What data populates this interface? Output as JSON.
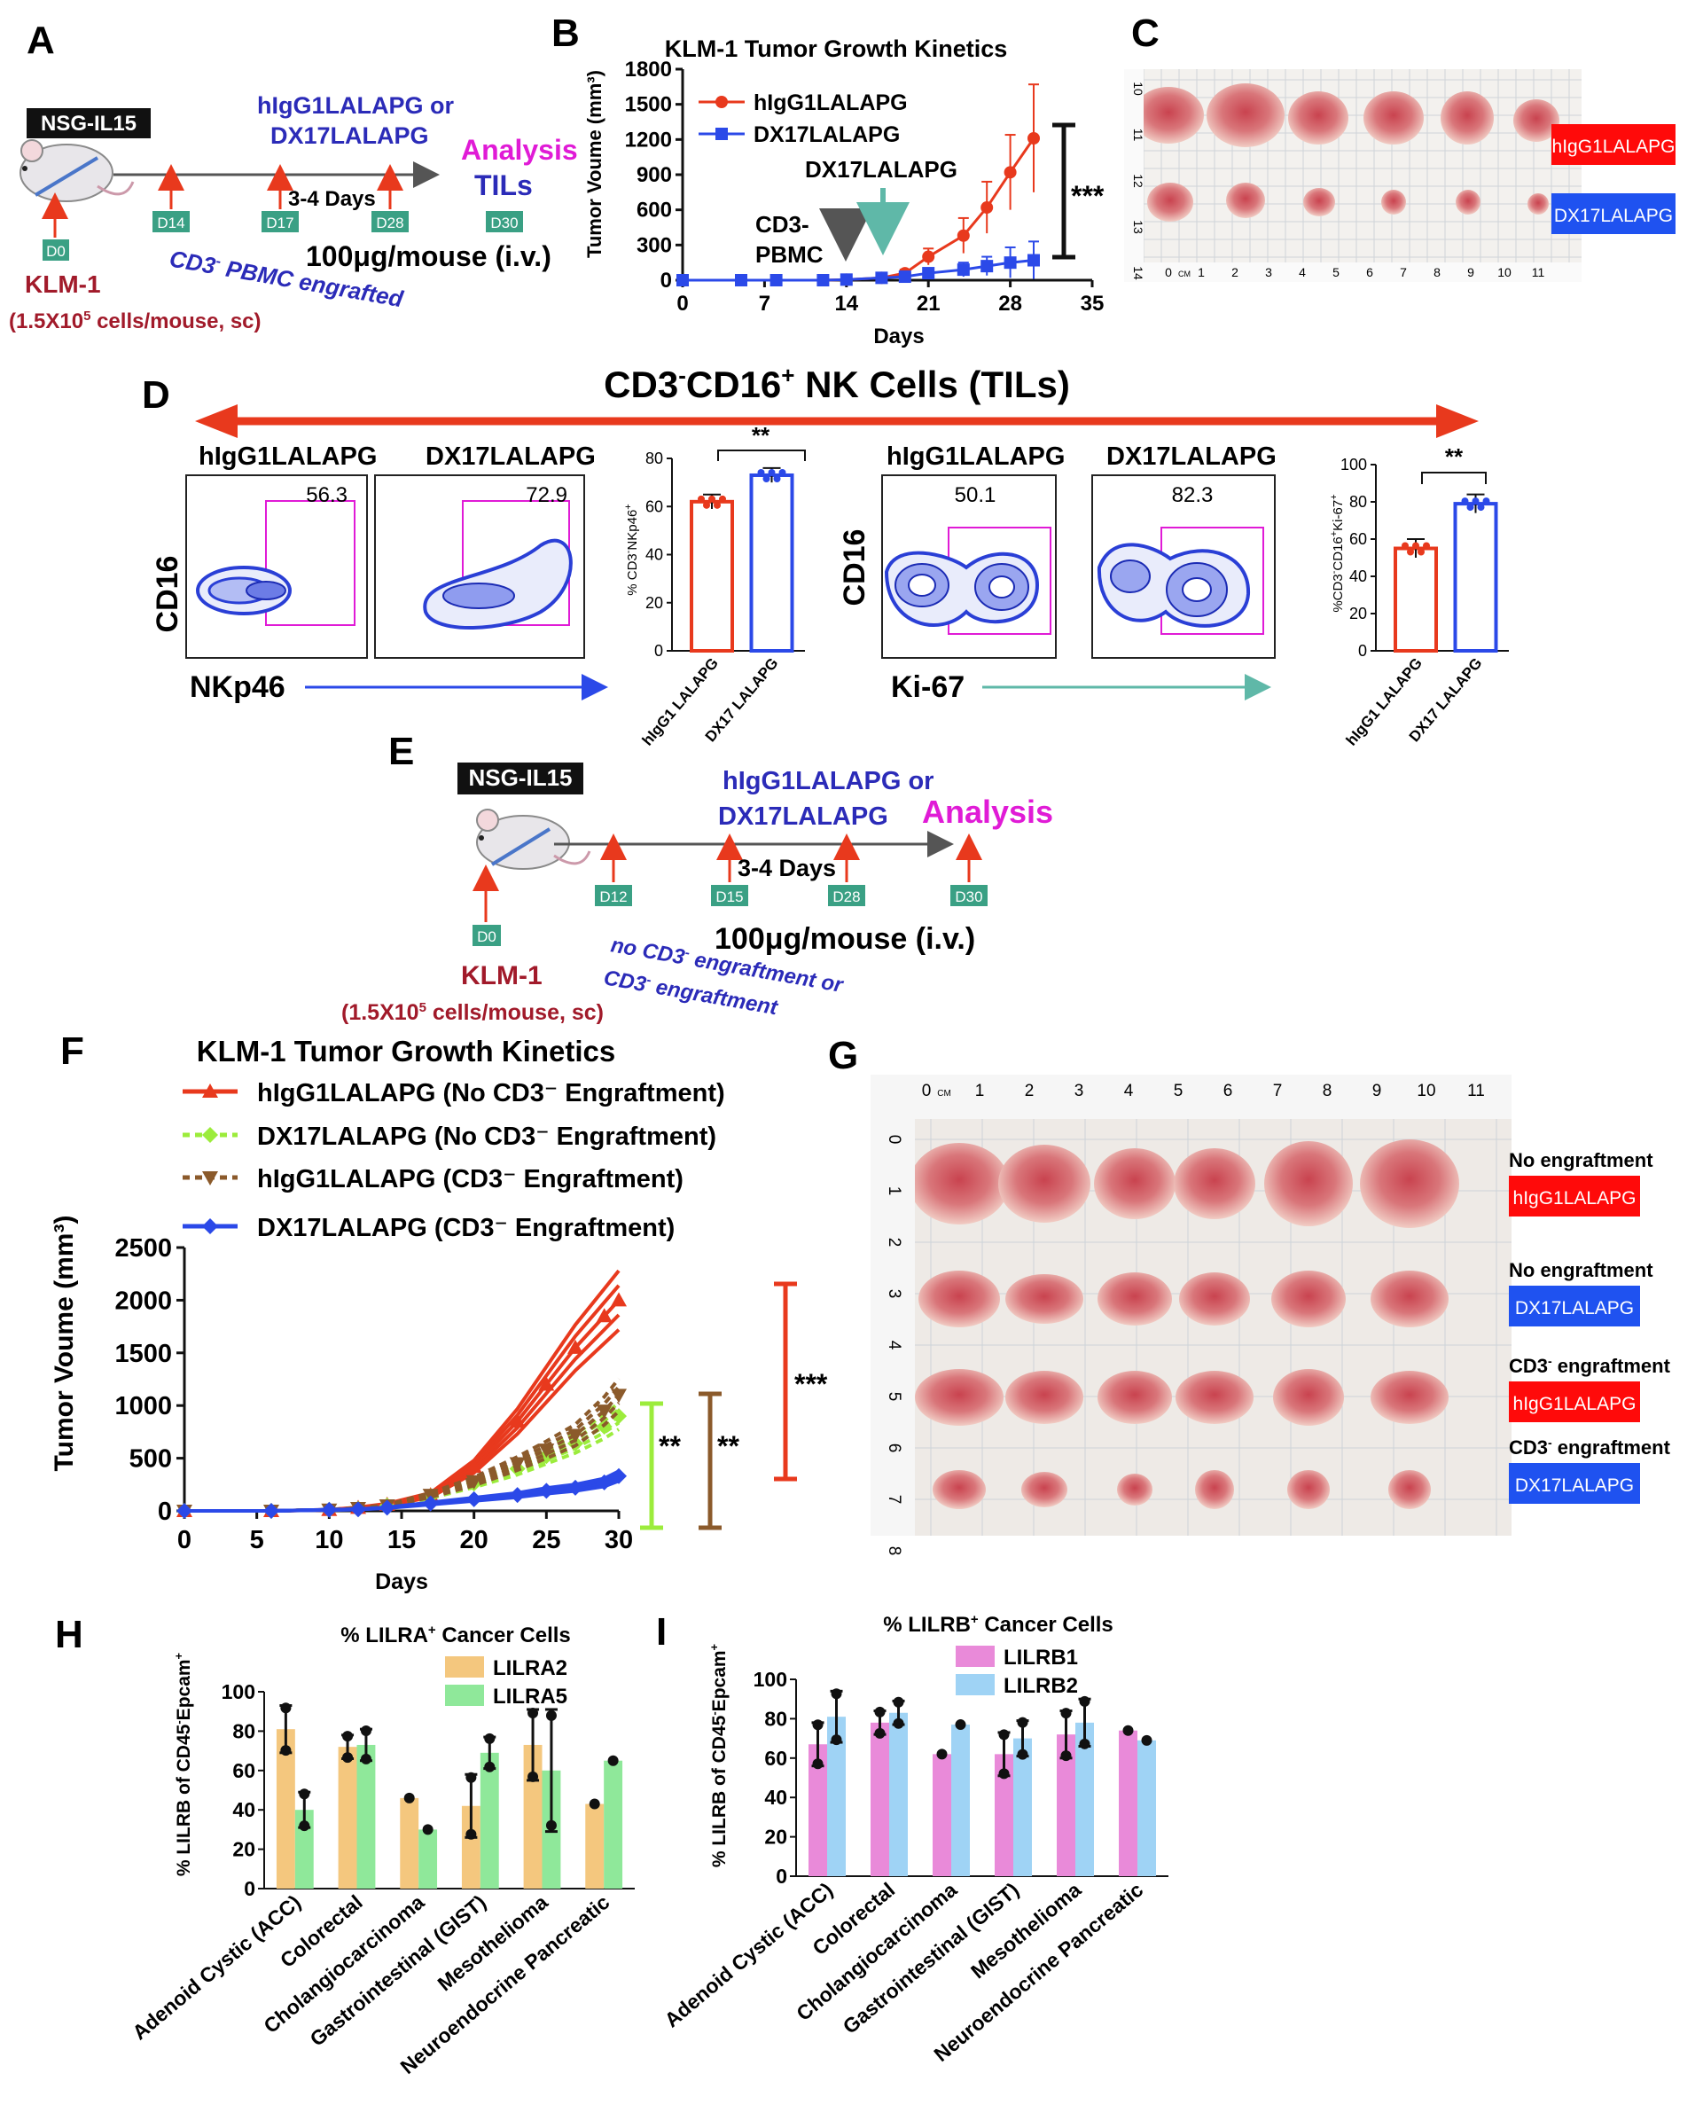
{
  "colors": {
    "red": "#e8391d",
    "blue": "#2b49e8",
    "green": "#5fb8a8",
    "lime": "#9cec3c",
    "brown": "#8b5a2b",
    "magenta": "#e01bd6",
    "orange_bar": "#f4c77e",
    "green_bar": "#8fe89a",
    "pink_bar": "#e98ad9",
    "sky_bar": "#9fd3f5",
    "purple": "#7b2a91"
  },
  "panelA": {
    "letter": "A",
    "strain": "NSG-IL15",
    "treatment": "hIgG1LALAPG or",
    "treatment2": "DX17LALAPG",
    "interval": "3-4 Days",
    "dose": "100μg/mouse (i.v.)",
    "day0": "D0",
    "day14": "D14",
    "day17": "D17",
    "day28": "D28",
    "day30": "D30",
    "analysis": "Analysis",
    "tils": "TILs",
    "cell_line": "KLM-1",
    "cells": "(1.5X10",
    "cells_sup": "5",
    "cells_tail": " cells/mouse, sc)",
    "engraft_pre": "CD3",
    "engraft_sup": "-",
    "engraft_tail": " PBMC engrafted"
  },
  "panelB": {
    "letter": "B",
    "sig": "***",
    "arrow1": "CD3-",
    "arrow1b": "PBMC",
    "arrow2": "DX17LALAPG"
  },
  "panelC": {
    "letter": "C",
    "label_top": "hIgG1LALAPG",
    "label_bottom": "DX17LALAPG",
    "ruler_left": [
      "10",
      "11",
      "12",
      "13",
      "14"
    ],
    "ruler_bottom": [
      "0",
      "CM",
      "1",
      "2",
      "3",
      "4",
      "5",
      "6",
      "7",
      "8",
      "9",
      "10",
      "11"
    ]
  },
  "panelD": {
    "letter": "D",
    "title": "CD3",
    "title_sup1": "-",
    "title_mid": "CD16",
    "title_sup2": "+",
    "title_tail": " NK Cells (TILs)",
    "flow1_a": "hIgG1LALAPG",
    "flow1_b": "DX17LALAPG",
    "flow1_val_a": "56.3",
    "flow1_val_b": "72.9",
    "flow1_y": "CD16",
    "flow1_x": "NKp46",
    "flow2_a": "hIgG1LALAPG",
    "flow2_b": "DX17LALAPG",
    "flow2_val_a": "50.1",
    "flow2_val_b": "82.3",
    "flow2_y": "CD16",
    "flow2_x": "Ki-67",
    "sig1": "**",
    "sig2": "**"
  },
  "panelE": {
    "letter": "E",
    "strain": "NSG-IL15",
    "treatment": "hIgG1LALAPG or",
    "treatment2": "DX17LALAPG",
    "analysis": "Analysis",
    "interval": "3-4 Days",
    "dose": "100μg/mouse (i.v.)",
    "day0": "D0",
    "day12": "D12",
    "day15": "D15",
    "day28": "D28",
    "day30": "D30",
    "cell_line": "KLM-1",
    "cells": "(1.5X10",
    "cells_sup": "5",
    "cells_tail": " cells/mouse, sc)",
    "engraft1_pre": "no CD3",
    "engraft1_sup": "-",
    "engraft1_tail": " engraftment or",
    "engraft2_pre": "CD3",
    "engraft2_sup": "-",
    "engraft2_tail": " engraftment"
  },
  "panelF": {
    "letter": "F",
    "sig_lime": "**",
    "sig_brown": "**",
    "sig_red": "***"
  },
  "panelG": {
    "letter": "G",
    "row1_caption": "No engraftment",
    "row1_label": "hIgG1LALAPG",
    "row2_caption": "No engraftment",
    "row2_label": "DX17LALAPG",
    "row3_caption_pre": "CD3",
    "row3_caption_sup": "-",
    "row3_caption_tail": " engraftment",
    "row3_label": "hIgG1LALAPG",
    "row4_caption_pre": "CD3",
    "row4_caption_sup": "-",
    "row4_caption_tail": " engraftment",
    "row4_label": "DX17LALAPG",
    "ruler_top": [
      "0",
      "CM",
      "1",
      "2",
      "3",
      "4",
      "5",
      "6",
      "7",
      "8",
      "9",
      "10",
      "11"
    ],
    "ruler_left": [
      "0",
      "1",
      "2",
      "3",
      "4",
      "5",
      "6",
      "7",
      "8"
    ]
  },
  "panelH": {
    "letter": "H"
  },
  "panelI": {
    "letter": "I"
  },
  "chart_data": [
    {
      "id": "B",
      "type": "line",
      "title": "KLM-1 Tumor Growth Kinetics",
      "xlabel": "Days",
      "ylabel": "Tumor Voume (mm³)",
      "xlim": [
        0,
        35
      ],
      "ylim": [
        0,
        1800
      ],
      "xticks": [
        0,
        7,
        14,
        21,
        28,
        35
      ],
      "yticks": [
        0,
        300,
        600,
        900,
        1200,
        1500,
        1800
      ],
      "xtick_labels": [
        "0",
        "7",
        "14",
        "21",
        "28",
        "35"
      ],
      "ytick_labels": [
        "0",
        "300",
        "600",
        "900",
        "1200",
        "1500",
        "1800"
      ],
      "series": [
        {
          "name": "hIgG1LALAPG",
          "x": [
            0,
            5,
            8,
            12,
            14,
            17,
            19,
            21,
            24,
            26,
            28,
            30
          ],
          "y": [
            0,
            0,
            0,
            0,
            5,
            20,
            60,
            200,
            380,
            620,
            920,
            1210
          ],
          "err": [
            0,
            0,
            0,
            0,
            5,
            10,
            30,
            70,
            150,
            220,
            320,
            460
          ]
        },
        {
          "name": "DX17LALAPG",
          "x": [
            0,
            5,
            8,
            12,
            14,
            17,
            19,
            21,
            24,
            26,
            28,
            30
          ],
          "y": [
            0,
            0,
            0,
            0,
            5,
            20,
            30,
            60,
            90,
            120,
            150,
            170
          ],
          "err": [
            0,
            0,
            0,
            0,
            5,
            10,
            20,
            40,
            60,
            80,
            130,
            160
          ]
        }
      ]
    },
    {
      "id": "D1",
      "type": "bar",
      "ylabel_pre": "% CD3",
      "ylabel_sup1": "-",
      "ylabel_mid": "NKp46",
      "ylabel_sup2": "+",
      "categories": [
        "hIgG1 LALAPG",
        "DX17 LALAPG"
      ],
      "values": [
        62,
        73
      ],
      "err": [
        3,
        3
      ],
      "ylim": [
        0,
        80
      ],
      "yticks": [
        0,
        20,
        40,
        60,
        80
      ],
      "ytick_labels": [
        "0",
        "20",
        "40",
        "60",
        "80"
      ]
    },
    {
      "id": "D2",
      "type": "bar",
      "ylabel_pre": "%CD3",
      "ylabel_sup1": "-",
      "ylabel_mid": "CD16",
      "ylabel_sup2": "+",
      "ylabel_mid2": "Ki-67",
      "ylabel_sup3": "+",
      "categories": [
        "hIgG1 LALAPG",
        "DX17 LALAPG"
      ],
      "values": [
        55,
        79
      ],
      "err": [
        5,
        5
      ],
      "ylim": [
        0,
        100
      ],
      "yticks": [
        0,
        20,
        40,
        60,
        80,
        100
      ],
      "ytick_labels": [
        "0",
        "20",
        "40",
        "60",
        "80",
        "100"
      ]
    },
    {
      "id": "F",
      "type": "line",
      "title": "KLM-1 Tumor Growth Kinetics",
      "xlabel": "Days",
      "ylabel": "Tumor Voume (mm³)",
      "xlim": [
        0,
        30
      ],
      "ylim": [
        0,
        2500
      ],
      "xticks": [
        0,
        5,
        10,
        15,
        20,
        25,
        30
      ],
      "yticks": [
        0,
        500,
        1000,
        1500,
        2000,
        2500
      ],
      "xtick_labels": [
        "0",
        "5",
        "10",
        "15",
        "20",
        "25",
        "30"
      ],
      "ytick_labels": [
        "0",
        "500",
        "1000",
        "1500",
        "2000",
        "2500"
      ],
      "series": [
        {
          "name": "hIgG1LALAPG (No CD3⁻ Engraftment)",
          "x": [
            0,
            6,
            10,
            12,
            14,
            17,
            20,
            23,
            25,
            27,
            29,
            30
          ],
          "y": [
            0,
            0,
            10,
            30,
            60,
            150,
            420,
            850,
            1200,
            1550,
            1850,
            2000
          ]
        },
        {
          "name": "DX17LALAPG (No CD3⁻ Engraftment)",
          "x": [
            0,
            6,
            10,
            12,
            14,
            17,
            20,
            23,
            25,
            27,
            29,
            30
          ],
          "y": [
            0,
            0,
            10,
            20,
            50,
            140,
            260,
            400,
            520,
            640,
            800,
            900
          ]
        },
        {
          "name": "hIgG1LALAPG (CD3⁻ Engraftment)",
          "x": [
            0,
            6,
            10,
            12,
            14,
            17,
            20,
            23,
            25,
            27,
            29,
            30
          ],
          "y": [
            0,
            0,
            10,
            25,
            50,
            150,
            280,
            450,
            580,
            720,
            950,
            1100
          ]
        },
        {
          "name": "DX17LALAPG (CD3⁻ Engraftment)",
          "x": [
            0,
            6,
            10,
            12,
            14,
            17,
            20,
            23,
            25,
            27,
            29,
            30
          ],
          "y": [
            0,
            0,
            10,
            15,
            30,
            70,
            110,
            150,
            190,
            220,
            270,
            330
          ]
        }
      ]
    },
    {
      "id": "H",
      "type": "bar",
      "title_pre": "% LILRA",
      "title_sup": "+",
      "title_tail": " Cancer Cells",
      "ylabel_pre": "% LILRB of CD45",
      "ylabel_sup1": "-",
      "ylabel_mid": "Epcam",
      "ylabel_sup2": "+",
      "categories": [
        "Adenoid Cystic (ACC)",
        "Colorectal",
        "Cholangiocarcinoma",
        "Gastrointestinal (GIST)",
        "Mesothelioma",
        "Neuroendocrine Pancreatic"
      ],
      "ylim": [
        0,
        100
      ],
      "yticks": [
        0,
        20,
        40,
        60,
        80,
        100
      ],
      "ytick_labels": [
        "0",
        "20",
        "40",
        "60",
        "80",
        "100"
      ],
      "series": [
        {
          "name": "LILRA2",
          "values": [
            81,
            72,
            46,
            42,
            73,
            43
          ],
          "err": [
            12,
            6,
            0,
            16,
            18,
            0
          ]
        },
        {
          "name": "LILRA5",
          "values": [
            40,
            73,
            30,
            69,
            60,
            65
          ],
          "err": [
            9,
            8,
            0,
            8,
            31,
            0
          ]
        }
      ]
    },
    {
      "id": "I",
      "type": "bar",
      "title_pre": "% LILRB",
      "title_sup": "+",
      "title_tail": " Cancer Cells",
      "ylabel_pre": "% LILRB of CD45",
      "ylabel_sup1": "-",
      "ylabel_mid": "Epcam",
      "ylabel_sup2": "+",
      "categories": [
        "Adenoid Cystic (ACC)",
        "Colorectal",
        "Cholangiocarcinoma",
        "Gastrointestinal (GIST)",
        "Mesothelioma",
        "Neuroendocrine Pancreatic"
      ],
      "ylim": [
        0,
        100
      ],
      "yticks": [
        0,
        20,
        40,
        60,
        80,
        100
      ],
      "ytick_labels": [
        "0",
        "20",
        "40",
        "60",
        "80",
        "100"
      ],
      "series": [
        {
          "name": "LILRB1",
          "values": [
            67,
            78,
            62,
            62,
            72,
            74
          ],
          "err": [
            11,
            6,
            0,
            11,
            12,
            0
          ]
        },
        {
          "name": "LILRB2",
          "values": [
            81,
            83,
            77,
            70,
            78,
            69
          ],
          "err": [
            13,
            6,
            0,
            9,
            12,
            0
          ]
        }
      ]
    }
  ]
}
